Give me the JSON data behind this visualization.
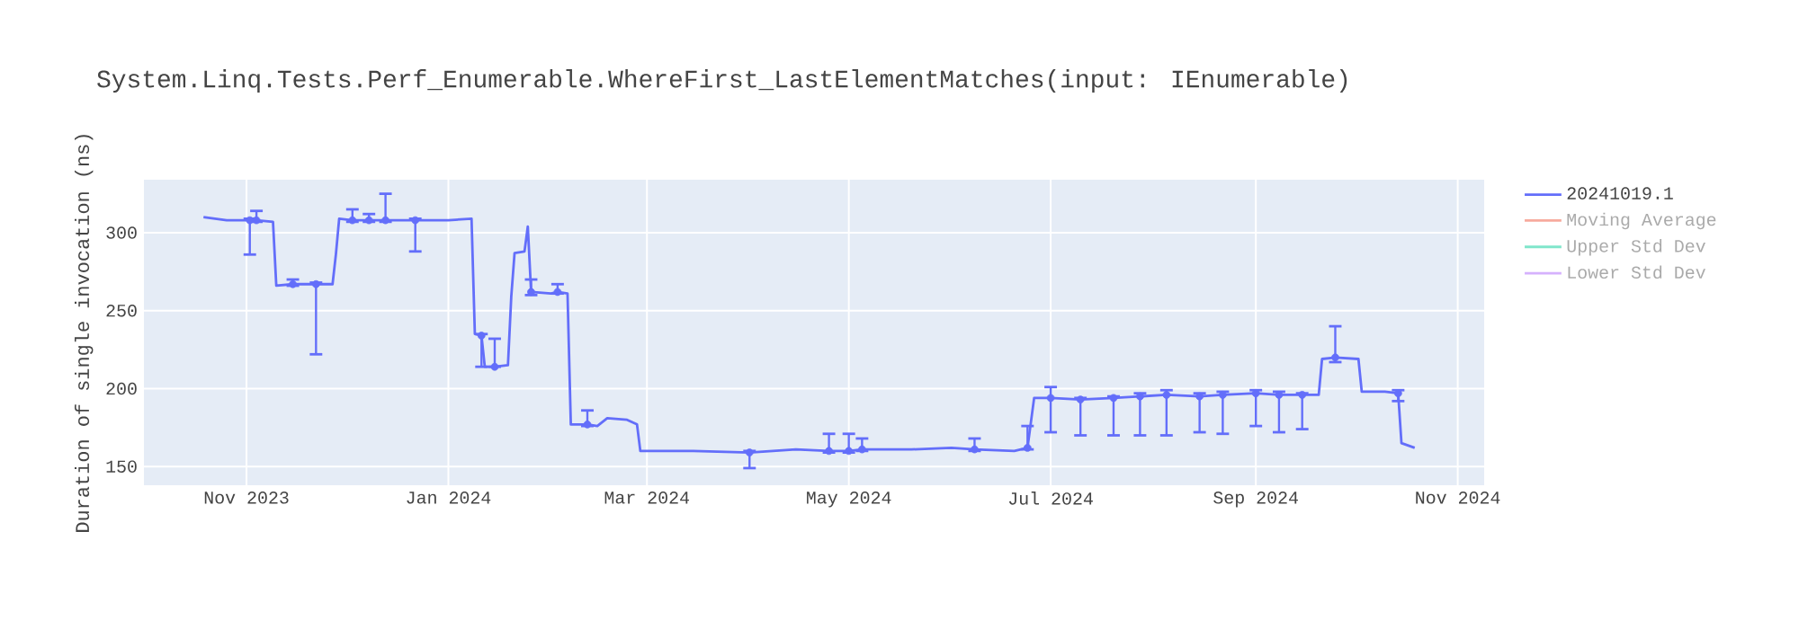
{
  "chart_data": {
    "type": "line",
    "title": "System.Linq.Tests.Perf_Enumerable.WhereFirst_LastElementMatches(input: IEnumerable)",
    "ylabel": "Duration of single invocation (ns)",
    "x": [
      "2023-10-19",
      "2023-10-26",
      "2023-11-02",
      "2023-11-04",
      "2023-11-09",
      "2023-11-10",
      "2023-11-15",
      "2023-11-22",
      "2023-11-27",
      "2023-11-28",
      "2023-11-29",
      "2023-12-03",
      "2023-12-08",
      "2023-12-13",
      "2023-12-22",
      "2024-01-01",
      "2024-01-08",
      "2024-01-09",
      "2024-01-11",
      "2024-01-12",
      "2024-01-15",
      "2024-01-19",
      "2024-01-20",
      "2024-01-21",
      "2024-01-24",
      "2024-01-25",
      "2024-01-26",
      "2024-02-01",
      "2024-02-03",
      "2024-02-06",
      "2024-02-07",
      "2024-02-12",
      "2024-02-15",
      "2024-02-18",
      "2024-02-24",
      "2024-02-27",
      "2024-02-28",
      "2024-03-15",
      "2024-04-01",
      "2024-04-15",
      "2024-04-25",
      "2024-05-01",
      "2024-05-05",
      "2024-05-20",
      "2024-06-01",
      "2024-06-08",
      "2024-06-20",
      "2024-06-24",
      "2024-06-26",
      "2024-07-01",
      "2024-07-10",
      "2024-07-20",
      "2024-07-28",
      "2024-08-05",
      "2024-08-15",
      "2024-08-22",
      "2024-09-01",
      "2024-09-08",
      "2024-09-15",
      "2024-09-20",
      "2024-09-21",
      "2024-09-25",
      "2024-10-02",
      "2024-10-03",
      "2024-10-10",
      "2024-10-14",
      "2024-10-15",
      "2024-10-19"
    ],
    "series": [
      {
        "name": "20241019.1",
        "color": "#636efa",
        "values": [
          310,
          308,
          308,
          308,
          307,
          266,
          267,
          267,
          267,
          286,
          309,
          308,
          308,
          308,
          308,
          308,
          309,
          235,
          234,
          214,
          214,
          215,
          259,
          287,
          288,
          304,
          262,
          261,
          262,
          261,
          177,
          177,
          176,
          181,
          180,
          177,
          160,
          160,
          159,
          161,
          160,
          160,
          161,
          161,
          162,
          161,
          160,
          162,
          194,
          194,
          193,
          194,
          195,
          196,
          195,
          196,
          197,
          196,
          196,
          196,
          219,
          220,
          219,
          198,
          198,
          197,
          165,
          162
        ],
        "errors": [
          null,
          null,
          [
            286,
            309
          ],
          [
            307,
            314
          ],
          null,
          null,
          [
            266,
            270
          ],
          [
            222,
            268
          ],
          null,
          null,
          null,
          [
            307,
            315
          ],
          [
            307,
            312
          ],
          [
            307,
            325
          ],
          [
            288,
            309
          ],
          null,
          null,
          null,
          [
            214,
            235
          ],
          null,
          [
            214,
            232
          ],
          null,
          null,
          null,
          null,
          null,
          [
            260,
            270
          ],
          null,
          [
            261,
            267
          ],
          null,
          null,
          [
            176,
            186
          ],
          null,
          null,
          null,
          null,
          null,
          null,
          [
            149,
            160
          ],
          null,
          [
            159,
            171
          ],
          [
            159,
            171
          ],
          [
            160,
            168
          ],
          null,
          null,
          [
            160,
            168
          ],
          null,
          [
            161,
            176
          ],
          null,
          [
            172,
            201
          ],
          [
            170,
            194
          ],
          [
            170,
            195
          ],
          [
            170,
            197
          ],
          [
            170,
            199
          ],
          [
            172,
            197
          ],
          [
            171,
            198
          ],
          [
            176,
            199
          ],
          [
            172,
            198
          ],
          [
            174,
            197
          ],
          null,
          null,
          [
            217,
            240
          ],
          null,
          null,
          null,
          [
            192,
            199
          ],
          null,
          null
        ]
      },
      {
        "name": "Moving Average",
        "color": "#f7aa9d",
        "values": [
          null,
          null,
          null,
          null,
          null,
          null,
          null,
          null,
          null,
          null,
          null,
          null,
          null,
          null,
          null,
          null,
          null,
          null,
          null,
          null,
          null,
          null,
          null,
          null,
          null,
          null,
          null,
          null,
          null,
          null,
          null,
          null,
          null,
          null,
          null,
          null,
          null,
          null,
          null,
          null,
          null,
          null,
          null,
          null,
          null,
          null,
          null,
          null,
          null,
          null,
          null,
          null,
          null,
          null,
          null,
          null,
          null,
          null,
          null,
          null,
          null,
          null,
          null,
          null,
          null,
          null,
          null,
          null
        ]
      },
      {
        "name": "Upper Std Dev",
        "color": "#80e6cb",
        "values": [
          null,
          null,
          null,
          null,
          null,
          null,
          null,
          null,
          null,
          null,
          null,
          null,
          null,
          null,
          null,
          null,
          null,
          null,
          null,
          null,
          null,
          null,
          null,
          null,
          null,
          null,
          null,
          null,
          null,
          null,
          null,
          null,
          null,
          null,
          null,
          null,
          null,
          null,
          null,
          null,
          null,
          null,
          null,
          null,
          null,
          null,
          null,
          null,
          null,
          null,
          null,
          null,
          null,
          null,
          null,
          null,
          null,
          null,
          null,
          null,
          null,
          null,
          null,
          null,
          null,
          null,
          null,
          null
        ]
      },
      {
        "name": "Lower Std Dev",
        "color": "#d5b1fd",
        "values": [
          null,
          null,
          null,
          null,
          null,
          null,
          null,
          null,
          null,
          null,
          null,
          null,
          null,
          null,
          null,
          null,
          null,
          null,
          null,
          null,
          null,
          null,
          null,
          null,
          null,
          null,
          null,
          null,
          null,
          null,
          null,
          null,
          null,
          null,
          null,
          null,
          null,
          null,
          null,
          null,
          null,
          null,
          null,
          null,
          null,
          null,
          null,
          null,
          null,
          null,
          null,
          null,
          null,
          null,
          null,
          null,
          null,
          null,
          null,
          null,
          null,
          null,
          null,
          null,
          null,
          null,
          null,
          null
        ]
      }
    ],
    "xlim": [
      "2023-10-01",
      "2024-11-09"
    ],
    "xticks": [
      {
        "value": "2023-11-01",
        "label": "Nov 2023"
      },
      {
        "value": "2024-01-01",
        "label": "Jan 2024"
      },
      {
        "value": "2024-03-01",
        "label": "Mar 2024"
      },
      {
        "value": "2024-05-01",
        "label": "May 2024"
      },
      {
        "value": "2024-07-01",
        "label": "Jul 2024"
      },
      {
        "value": "2024-09-01",
        "label": "Sep 2024"
      },
      {
        "value": "2024-11-01",
        "label": "Nov 2024"
      }
    ],
    "ylim": [
      138,
      334
    ],
    "yticks": [
      150,
      200,
      250,
      300
    ],
    "grid": true,
    "legend": "right",
    "line_style": "solid",
    "marker": "none"
  }
}
